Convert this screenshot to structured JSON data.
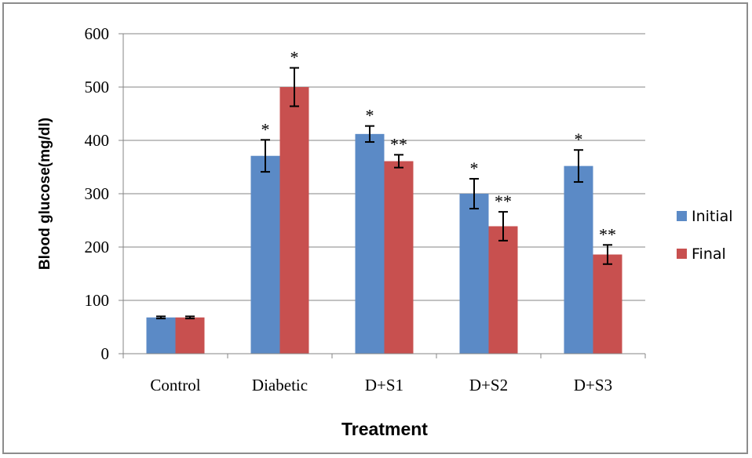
{
  "chart_data": {
    "type": "bar",
    "categories": [
      "Control",
      "Diabetic",
      "D+S1",
      "D+S2",
      "D+S3"
    ],
    "series": [
      {
        "name": "Initial",
        "color": "#5B8AC6",
        "values": [
          68,
          371,
          412,
          300,
          352
        ],
        "errors": [
          2,
          30,
          15,
          28,
          30
        ],
        "annotations": [
          "",
          "*",
          "*",
          "*",
          "*"
        ]
      },
      {
        "name": "Final",
        "color": "#C8504F",
        "values": [
          68,
          500,
          361,
          239,
          186
        ],
        "errors": [
          2,
          36,
          12,
          27,
          18
        ],
        "annotations": [
          "",
          "*",
          "**",
          "**",
          "**"
        ]
      }
    ],
    "xlabel": "Treatment",
    "ylabel": "Blood glucose(mg/dl)",
    "ylim": [
      0,
      600
    ],
    "yticks": [
      0,
      100,
      200,
      300,
      400,
      500,
      600
    ],
    "grid": true,
    "legend_position": "right"
  }
}
